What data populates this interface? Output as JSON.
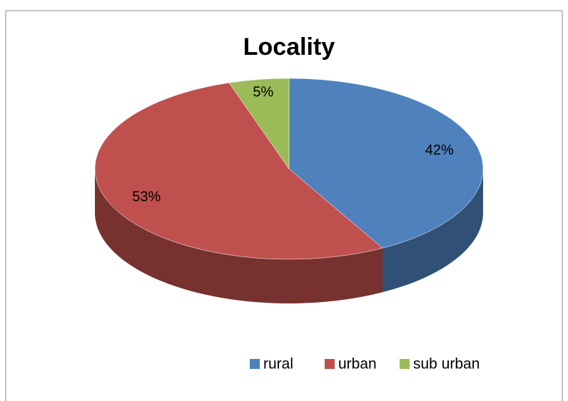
{
  "chart_data": {
    "type": "pie",
    "title": "Locality",
    "categories": [
      "rural",
      "urban",
      "sub urban"
    ],
    "values": [
      42,
      53,
      5
    ],
    "value_labels": [
      "42%",
      "53%",
      "5%"
    ],
    "colors": [
      "#4f81bd",
      "#c0504d",
      "#9bbb59"
    ],
    "legend": "bottom"
  }
}
